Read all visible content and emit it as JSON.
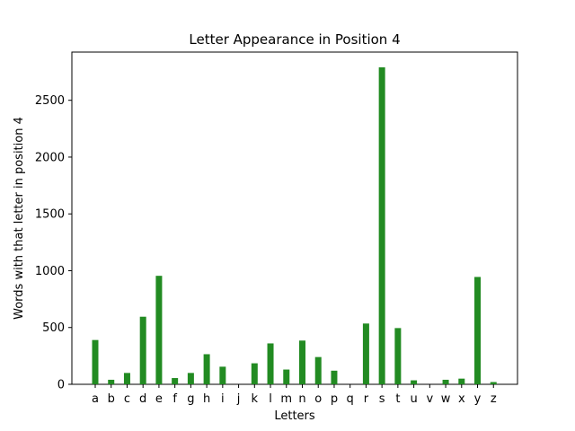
{
  "chart_data": {
    "type": "bar",
    "title": "Letter Appearance in Position 4",
    "xlabel": "Letters",
    "ylabel": "Words with that letter in position 4",
    "categories": [
      "a",
      "b",
      "c",
      "d",
      "e",
      "f",
      "g",
      "h",
      "i",
      "j",
      "k",
      "l",
      "m",
      "n",
      "o",
      "p",
      "q",
      "r",
      "s",
      "t",
      "u",
      "v",
      "w",
      "x",
      "y",
      "z"
    ],
    "values": [
      390,
      40,
      100,
      595,
      955,
      55,
      100,
      265,
      155,
      0,
      185,
      360,
      130,
      385,
      240,
      120,
      0,
      535,
      2790,
      495,
      35,
      0,
      40,
      50,
      945,
      20
    ],
    "ylim": [
      0,
      2900
    ],
    "yticks": [
      0,
      500,
      1000,
      1500,
      2000,
      2500
    ],
    "bar_color": "#228b22",
    "grid": false
  }
}
